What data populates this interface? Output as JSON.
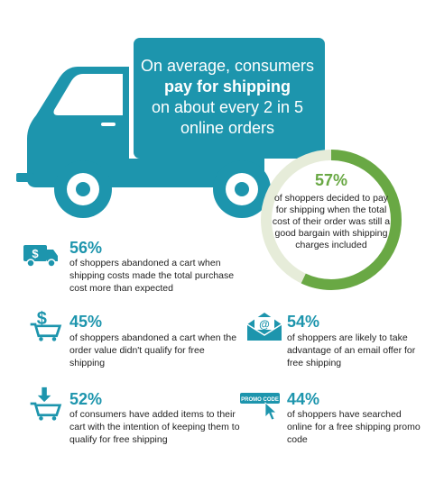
{
  "truck": {
    "line1": "On average, consumers",
    "line2": "pay for shipping",
    "line3": "on about every 2 in 5",
    "line4": "online orders",
    "color": "#1d95ad"
  },
  "donut": {
    "value": 57,
    "pct_label": "57%",
    "description": "of shoppers decided to pay for shipping when the total cost of their order was still a good bargain with shipping charges included",
    "fill_color": "#69a844",
    "track_color": "#e6ecd9"
  },
  "stats": [
    {
      "icon": "truck-dollar-icon",
      "pct": "56%",
      "desc": "of shoppers abandoned a cart when shipping costs made the total purchase cost more than expected"
    },
    {
      "icon": "cart-dollar-icon",
      "pct": "45%",
      "desc": "of shoppers abandoned a cart when the order value didn't qualify for free shipping"
    },
    {
      "icon": "envelope-at-icon",
      "pct": "54%",
      "desc": "of shoppers are likely to take advantage of an email offer for free shipping"
    },
    {
      "icon": "cart-arrow-icon",
      "pct": "52%",
      "desc": "of consumers have added items to their cart with the intention of keeping them to qualify for free shipping"
    },
    {
      "icon": "promo-code-icon",
      "pct": "44%",
      "desc": "of shoppers have searched online for a free shipping promo code",
      "icon_label": "PROMO CODE"
    }
  ]
}
